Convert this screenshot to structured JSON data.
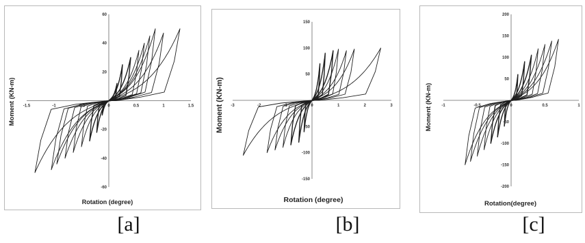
{
  "captions": [
    "[a]",
    "[b]",
    "[c]"
  ],
  "chart_data": [
    {
      "type": "line",
      "xlabel": "Rotation (degree)",
      "ylabel": "Moment  (KN-m)",
      "xlim": [
        -1.5,
        1.5
      ],
      "ylim": [
        -60,
        60
      ],
      "xticks": [
        -1.5,
        -1,
        -0.5,
        0,
        0.5,
        1,
        1.5
      ],
      "yticks": [
        -60,
        -40,
        -20,
        0,
        20,
        40,
        60
      ],
      "xtick_labels": [
        "-1.5",
        "-1",
        "-0.5",
        "0",
        "0.5",
        "1",
        "1.5"
      ],
      "ytick_labels": [
        "-60",
        "-40",
        "-20",
        "",
        "20",
        "40",
        "60"
      ],
      "grid": false,
      "cycles": [
        {
          "xmax": 0.15,
          "ymax": 12,
          "xmin": -0.12,
          "ymin": -10
        },
        {
          "xmax": 0.25,
          "ymax": 25,
          "xmin": -0.22,
          "ymin": -22
        },
        {
          "xmax": 0.4,
          "ymax": 30,
          "xmin": -0.35,
          "ymin": -28
        },
        {
          "xmax": 0.55,
          "ymax": 35,
          "xmin": -0.5,
          "ymin": -32
        },
        {
          "xmax": 0.65,
          "ymax": 40,
          "xmin": -0.65,
          "ymin": -36
        },
        {
          "xmax": 0.75,
          "ymax": 45,
          "xmin": -0.8,
          "ymin": -40
        },
        {
          "xmax": 0.85,
          "ymax": 50,
          "xmin": -0.95,
          "ymin": -44
        },
        {
          "xmax": 1.0,
          "ymax": 47,
          "xmin": -1.05,
          "ymin": -48
        },
        {
          "xmax": 1.3,
          "ymax": 50,
          "xmin": -1.35,
          "ymin": -50
        }
      ]
    },
    {
      "type": "line",
      "xlabel": "Rotation (degree)",
      "ylabel": "Moment  (KN-m)",
      "xlim": [
        -3,
        3
      ],
      "ylim": [
        -150,
        150
      ],
      "xticks": [
        -3,
        -2,
        -1,
        0,
        1,
        2,
        3
      ],
      "yticks": [
        -150,
        -100,
        -50,
        0,
        50,
        100,
        150
      ],
      "xtick_labels": [
        "-3",
        "-2",
        "-1",
        "0",
        "1",
        "2",
        "3"
      ],
      "ytick_labels": [
        "-150",
        "-100",
        "-50",
        "",
        "50",
        "100",
        "150"
      ],
      "grid": false,
      "cycles": [
        {
          "xmax": 0.3,
          "ymax": 70,
          "xmin": -0.3,
          "ymin": -60
        },
        {
          "xmax": 0.5,
          "ymax": 90,
          "xmin": -0.5,
          "ymin": -80
        },
        {
          "xmax": 0.8,
          "ymax": 95,
          "xmin": -0.8,
          "ymin": -85
        },
        {
          "xmax": 1.0,
          "ymax": 98,
          "xmin": -1.1,
          "ymin": -90
        },
        {
          "xmax": 1.3,
          "ymax": 95,
          "xmin": -1.4,
          "ymin": -95
        },
        {
          "xmax": 1.6,
          "ymax": 98,
          "xmin": -1.7,
          "ymin": -100
        },
        {
          "xmax": 2.6,
          "ymax": 100,
          "xmin": -2.6,
          "ymin": -105
        }
      ]
    },
    {
      "type": "line",
      "xlabel": "Rotation(degree)",
      "ylabel": "Moment (KN-m)",
      "xlim": [
        -1,
        1
      ],
      "ylim": [
        -200,
        200
      ],
      "xticks": [
        -1,
        -0.5,
        0,
        0.5,
        1
      ],
      "yticks": [
        -200,
        -150,
        -100,
        -50,
        0,
        50,
        100,
        150,
        200
      ],
      "xtick_labels": [
        "-1",
        "-0.5",
        "0",
        "0.5",
        "1"
      ],
      "ytick_labels": [
        "-200",
        "-150",
        "-100",
        "-50",
        "",
        "50",
        "100",
        "150",
        "200"
      ],
      "grid": false,
      "cycles": [
        {
          "xmax": 0.1,
          "ymax": 60,
          "xmin": -0.1,
          "ymin": -60
        },
        {
          "xmax": 0.2,
          "ymax": 90,
          "xmin": -0.2,
          "ymin": -85
        },
        {
          "xmax": 0.3,
          "ymax": 105,
          "xmin": -0.3,
          "ymin": -100
        },
        {
          "xmax": 0.4,
          "ymax": 120,
          "xmin": -0.4,
          "ymin": -115
        },
        {
          "xmax": 0.5,
          "ymax": 130,
          "xmin": -0.5,
          "ymin": -130
        },
        {
          "xmax": 0.6,
          "ymax": 138,
          "xmin": -0.6,
          "ymin": -142
        },
        {
          "xmax": 0.7,
          "ymax": 142,
          "xmin": -0.68,
          "ymin": -150
        }
      ]
    }
  ]
}
